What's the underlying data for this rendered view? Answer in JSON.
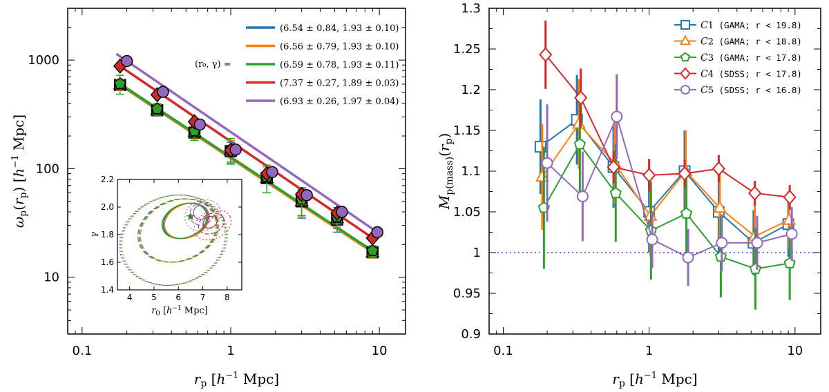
{
  "colors": {
    "C1": "#1f77b4",
    "C2": "#ff7f0e",
    "C3": "#2ca02c",
    "C4": "#d62728",
    "C5": "#9467bd"
  },
  "chart_data": [
    {
      "type": "line",
      "title": "",
      "xlabel": "r_p  [h^-1 Mpc]",
      "ylabel": "ω_p(r_p)  [h^-1 Mpc]",
      "xscale": "log",
      "yscale": "log",
      "xlim": [
        0.08,
        15
      ],
      "ylim": [
        3,
        3000
      ],
      "xticks": [
        0.1,
        1,
        10
      ],
      "xtick_labels": [
        "0.1",
        "1",
        "10"
      ],
      "yticks": [
        10,
        100,
        1000
      ],
      "ytick_labels": [
        "10",
        "100",
        "1000"
      ],
      "legend_prefix": "(r₀, γ) =",
      "x": [
        0.18,
        0.32,
        0.57,
        1.0,
        1.75,
        3.0,
        5.2,
        9.0
      ],
      "series": [
        {
          "name": "C1",
          "legend": "(6.54 ± 0.84, 1.93 ± 0.10)",
          "marker": "square",
          "values": [
            590,
            345,
            215,
            145,
            82,
            50,
            34,
            17
          ],
          "errors": [
            60,
            35,
            25,
            30,
            22,
            15,
            8,
            2
          ]
        },
        {
          "name": "C2",
          "legend": "(6.56 ± 0.79, 1.93 ± 0.10)",
          "marker": "triangle",
          "values": [
            595,
            350,
            218,
            147,
            82,
            50,
            35,
            17
          ],
          "errors": [
            70,
            38,
            30,
            35,
            22,
            14,
            6,
            2
          ]
        },
        {
          "name": "C3",
          "legend": "(6.59 ± 0.78, 1.93 ± 0.11)",
          "marker": "pentagon",
          "values": [
            605,
            355,
            222,
            150,
            84,
            52,
            36,
            17.5
          ],
          "errors": [
            120,
            45,
            40,
            40,
            24,
            15,
            8,
            2
          ]
        },
        {
          "name": "C4",
          "legend": "(7.37 ± 0.27, 1.89 ± 0.03)",
          "marker": "diamond",
          "values": [
            880,
            480,
            270,
            148,
            90,
            58,
            39,
            23
          ],
          "errors": [
            30,
            15,
            10,
            6,
            4,
            3,
            2,
            1
          ]
        },
        {
          "name": "C5",
          "legend": "(6.93 ± 0.26, 1.97 ± 0.04)",
          "marker": "circle",
          "x": [
            0.2,
            0.35,
            0.62,
            1.08,
            1.9,
            3.25,
            5.6,
            9.7
          ],
          "values": [
            980,
            510,
            255,
            150,
            93,
            57,
            40,
            26
          ],
          "errors": [
            30,
            15,
            10,
            6,
            4,
            3,
            2,
            1
          ]
        }
      ],
      "inset": {
        "xlabel": "r₀  [h^-1 Mpc]",
        "ylabel": "γ",
        "xlim": [
          3.5,
          8.6
        ],
        "ylim": [
          1.4,
          2.2
        ],
        "xticks": [
          4,
          5,
          6,
          7,
          8
        ],
        "xtick_labels": [
          "4",
          "5",
          "6",
          "7",
          "8"
        ],
        "yticks": [
          1.4,
          1.6,
          1.8,
          2.0,
          2.2
        ],
        "ytick_labels": [
          "1.4",
          "1.6",
          "1.8",
          "2.0",
          "2.2"
        ],
        "best_fit_star": {
          "r0": 6.5,
          "gamma": 1.93
        }
      }
    },
    {
      "type": "line",
      "title": "",
      "xlabel": "r_p  [h^-1 Mpc]",
      "ylabel": "M_p(mass)(r_p)",
      "xscale": "log",
      "yscale": "linear",
      "xlim": [
        0.08,
        15
      ],
      "ylim": [
        0.9,
        1.3
      ],
      "xticks": [
        0.1,
        1,
        10
      ],
      "xtick_labels": [
        "0.1",
        "1",
        "10"
      ],
      "yticks": [
        0.9,
        0.95,
        1.0,
        1.05,
        1.1,
        1.15,
        1.2,
        1.25,
        1.3
      ],
      "ytick_labels": [
        "0.9",
        "0.95",
        "1",
        "1.05",
        "1.1",
        "1.15",
        "1.2",
        "1.25",
        "1.3"
      ],
      "reference_line": 1.0,
      "legend_position": "top-right",
      "series": [
        {
          "name": "C1",
          "label": "(GAMA; r < 19.8)",
          "marker": "square",
          "x": [
            0.18,
            0.32,
            0.57,
            1.0,
            1.75,
            3.0,
            5.2,
            9.0
          ],
          "values": [
            1.13,
            1.163,
            1.105,
            1.05,
            1.1,
            1.05,
            1.012,
            1.035
          ],
          "errors": [
            0.058,
            0.055,
            0.05,
            0.05,
            0.05,
            0.05,
            0.04,
            0.04
          ]
        },
        {
          "name": "C2",
          "label": "(GAMA; r < 18.8)",
          "marker": "triangle",
          "x": [
            0.185,
            0.33,
            0.58,
            1.02,
            1.78,
            3.05,
            5.3,
            9.1
          ],
          "values": [
            1.093,
            1.158,
            1.11,
            1.045,
            1.1,
            1.055,
            1.02,
            1.04
          ],
          "errors": [
            0.065,
            0.055,
            0.05,
            0.05,
            0.05,
            0.045,
            0.04,
            0.035
          ]
        },
        {
          "name": "C3",
          "label": "(GAMA; r < 17.8)",
          "marker": "pentagon",
          "x": [
            0.19,
            0.335,
            0.59,
            1.03,
            1.8,
            3.1,
            5.35,
            9.2
          ],
          "values": [
            1.055,
            1.133,
            1.073,
            1.027,
            1.048,
            0.995,
            0.98,
            0.987
          ],
          "errors": [
            0.075,
            0.06,
            0.06,
            0.06,
            0.055,
            0.05,
            0.05,
            0.045
          ]
        },
        {
          "name": "C4",
          "label": "(SDSS; r < 17.8)",
          "marker": "diamond",
          "x": [
            0.195,
            0.34,
            0.57,
            1.0,
            1.75,
            3.0,
            5.3,
            9.2
          ],
          "values": [
            1.243,
            1.19,
            1.105,
            1.095,
            1.097,
            1.103,
            1.073,
            1.068
          ],
          "errors": [
            0.042,
            0.036,
            0.02,
            0.02,
            0.017,
            0.017,
            0.015,
            0.015
          ]
        },
        {
          "name": "C5",
          "label": "(SDSS; r < 16.8)",
          "marker": "circle",
          "x": [
            0.2,
            0.35,
            0.6,
            1.05,
            1.85,
            3.15,
            5.5,
            9.5
          ],
          "values": [
            1.11,
            1.069,
            1.167,
            1.016,
            0.994,
            1.012,
            1.012,
            1.023
          ],
          "errors": [
            0.072,
            0.055,
            0.052,
            0.035,
            0.035,
            0.035,
            0.033,
            0.033
          ]
        }
      ]
    }
  ]
}
